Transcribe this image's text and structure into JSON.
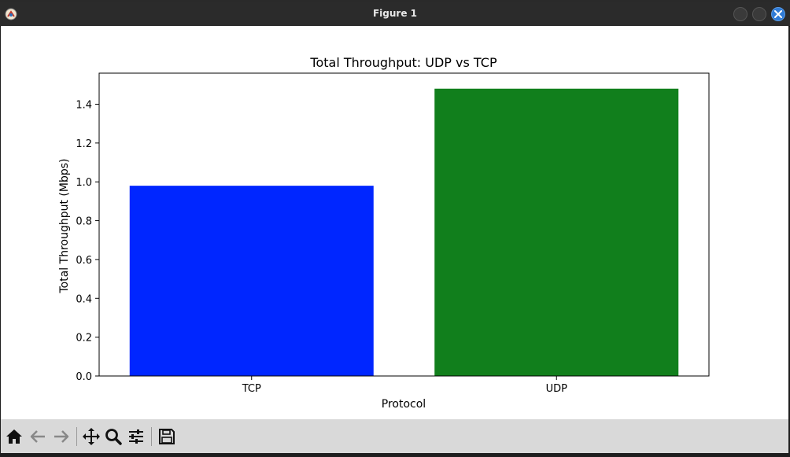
{
  "window": {
    "title": "Figure 1"
  },
  "toolbar": {
    "buttons": [
      {
        "name": "home",
        "icon": "home-icon"
      },
      {
        "name": "back",
        "icon": "back-arrow-icon"
      },
      {
        "name": "forward",
        "icon": "forward-arrow-icon"
      },
      {
        "name": "pan",
        "icon": "pan-move-icon"
      },
      {
        "name": "zoom",
        "icon": "zoom-magnifier-icon"
      },
      {
        "name": "configure-subplots",
        "icon": "sliders-icon"
      },
      {
        "name": "save",
        "icon": "save-floppy-icon"
      }
    ]
  },
  "chart_data": {
    "type": "bar",
    "title": "Total Throughput: UDP vs TCP",
    "xlabel": "Protocol",
    "ylabel": "Total Throughput (Mbps)",
    "categories": [
      "TCP",
      "UDP"
    ],
    "values": [
      0.98,
      1.48
    ],
    "colors": [
      "#0026ff",
      "#117f1c"
    ],
    "ylim": [
      0,
      1.56
    ],
    "yticks": [
      "0.0",
      "0.2",
      "0.4",
      "0.6",
      "0.8",
      "1.0",
      "1.2",
      "1.4"
    ],
    "grid": false,
    "legend": "none"
  }
}
